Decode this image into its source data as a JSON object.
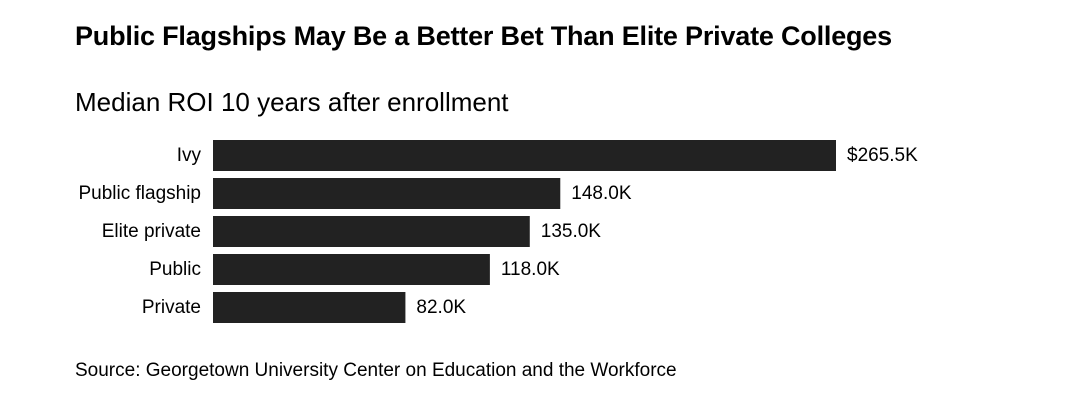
{
  "header": {
    "title": "Public Flagships May Be a Better Bet Than Elite Private Colleges",
    "subtitle": "Median ROI 10 years after enrollment"
  },
  "footer": {
    "source": "Source: Georgetown University Center on Education and the Workforce"
  },
  "colors": {
    "bar": "#222222",
    "text": "#000000",
    "background": "#ffffff"
  },
  "chart_data": {
    "type": "bar",
    "orientation": "horizontal",
    "title": "Public Flagships May Be a Better Bet Than Elite Private Colleges",
    "subtitle": "Median ROI 10 years after enrollment",
    "categories": [
      "Ivy",
      "Public flagship",
      "Elite private",
      "Public",
      "Private"
    ],
    "values": [
      265.5,
      148.0,
      135.0,
      118.0,
      82.0
    ],
    "value_labels": [
      "$265.5K",
      "148.0K",
      "135.0K",
      "118.0K",
      "82.0K"
    ],
    "unit": "K",
    "xlim": [
      0,
      265.5
    ],
    "grid": false,
    "legend": "none"
  }
}
